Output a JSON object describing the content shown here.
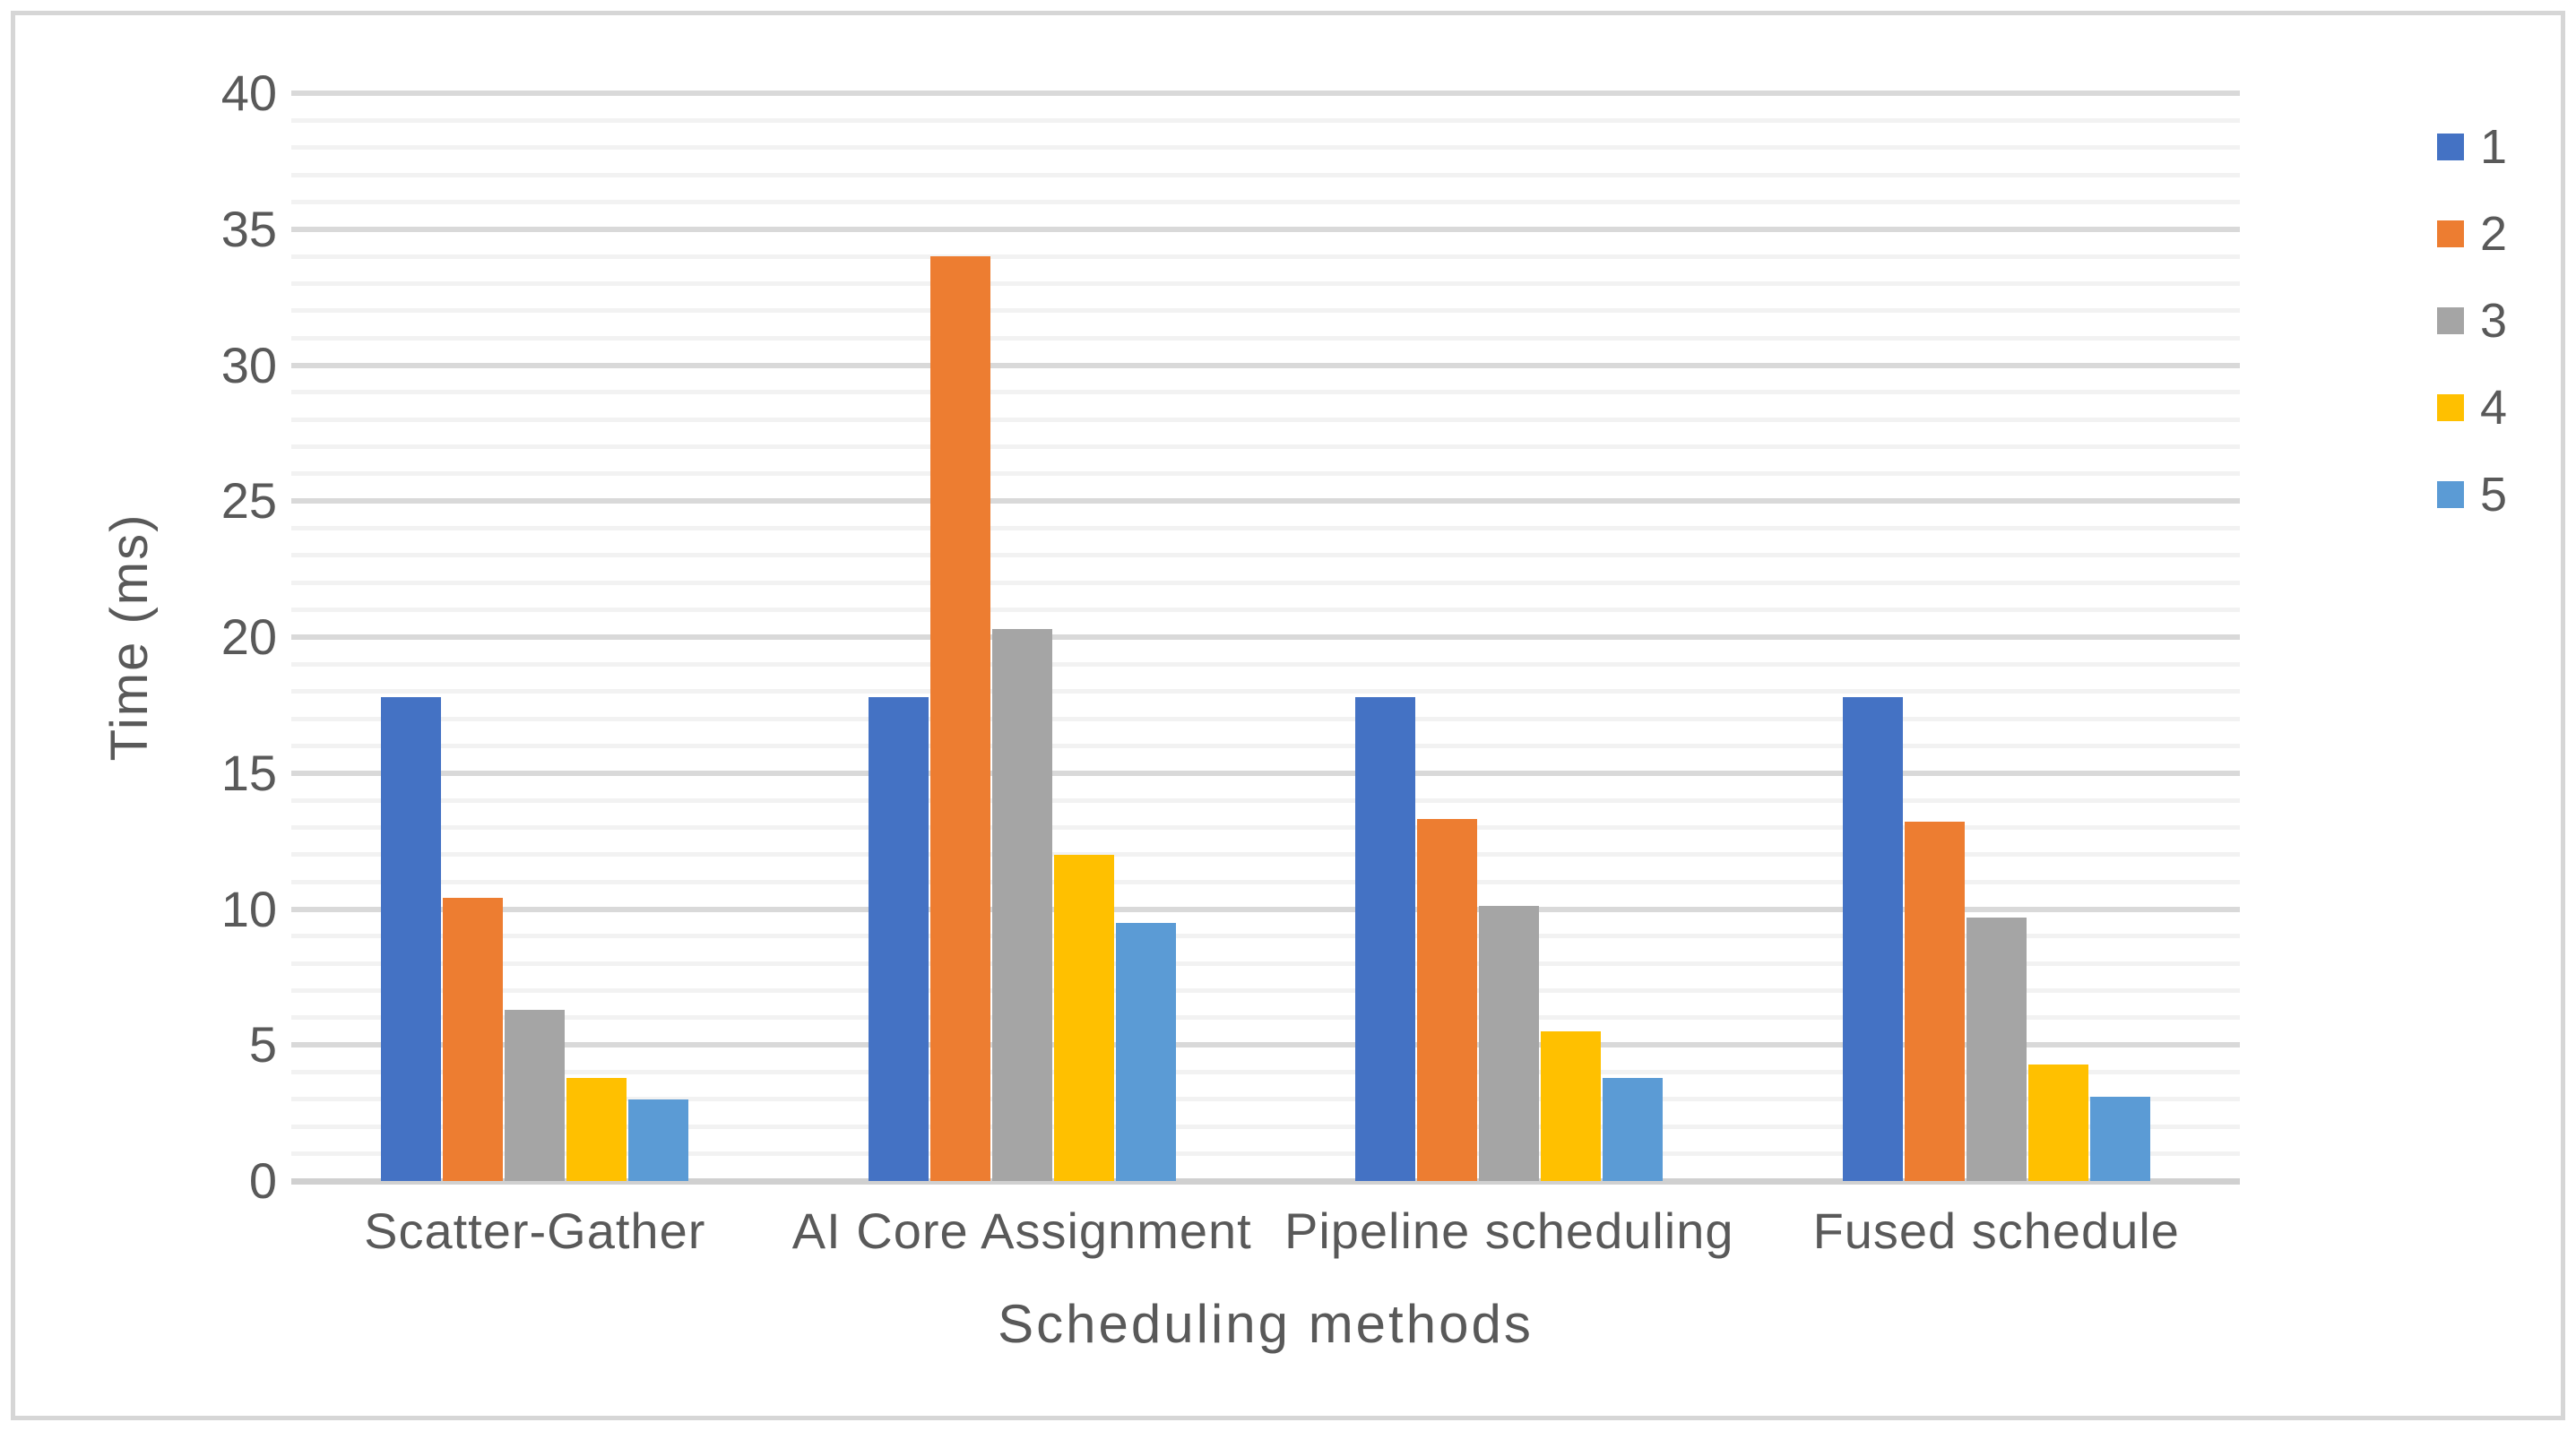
{
  "figure": {
    "background": "#FFFFFF",
    "border_color": "#D6D6D6"
  },
  "chart_data": {
    "type": "bar",
    "title": "",
    "categories": [
      "Scatter-Gather",
      "AI Core Assignment",
      "Pipeline scheduling",
      "Fused schedule"
    ],
    "series": [
      {
        "name": "1",
        "color": "#4472C4",
        "values": [
          17.8,
          17.8,
          17.8,
          17.8
        ]
      },
      {
        "name": "2",
        "color": "#ED7D31",
        "values": [
          10.4,
          34.0,
          13.3,
          13.2
        ]
      },
      {
        "name": "3",
        "color": "#A5A5A5",
        "values": [
          6.3,
          20.3,
          10.1,
          9.7
        ]
      },
      {
        "name": "4",
        "color": "#FFC000",
        "values": [
          3.8,
          12.0,
          5.5,
          4.3
        ]
      },
      {
        "name": "5",
        "color": "#5B9BD5",
        "values": [
          3.0,
          9.5,
          3.8,
          3.1
        ]
      }
    ],
    "xlabel": "Scheduling methods",
    "ylabel": "Time (ms)",
    "ylim": [
      0,
      40
    ],
    "ytick_step": 5,
    "minor_gridline_step": 1,
    "grid": true,
    "legend_position": "right",
    "text_color": "#595959",
    "major_gridline_color": "#D9D9D9",
    "minor_gridline_color": "#F2F2F2",
    "axis_line_color": "#D0D0D0"
  }
}
